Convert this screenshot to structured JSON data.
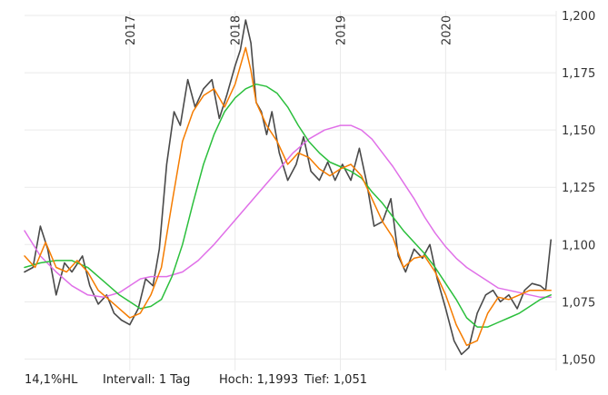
{
  "chart_data": {
    "type": "line",
    "title": "",
    "xlabel": "",
    "ylabel": "",
    "x_ticks": [
      "2017",
      "2018",
      "2019",
      "2020"
    ],
    "y_ticks": [
      "1,050",
      "1,075",
      "1,100",
      "1,125",
      "1,150",
      "1,175",
      "1,200"
    ],
    "ylim": [
      1.045,
      1.202
    ],
    "xlim": [
      2016.0,
      2021.05
    ],
    "grid": true,
    "series": [
      {
        "color": "#4a4a4a",
        "style": "price",
        "x": [
          2016.0,
          2016.08,
          2016.15,
          2016.22,
          2016.3,
          2016.38,
          2016.45,
          2016.55,
          2016.62,
          2016.7,
          2016.78,
          2016.85,
          2016.92,
          2017.0,
          2017.08,
          2017.15,
          2017.22,
          2017.28,
          2017.35,
          2017.42,
          2017.48,
          2017.55,
          2017.62,
          2017.7,
          2017.78,
          2017.85,
          2017.92,
          2018.0,
          2018.05,
          2018.1,
          2018.15,
          2018.2,
          2018.25,
          2018.3,
          2018.35,
          2018.42,
          2018.5,
          2018.58,
          2018.65,
          2018.72,
          2018.8,
          2018.88,
          2018.95,
          2019.02,
          2019.1,
          2019.18,
          2019.25,
          2019.32,
          2019.4,
          2019.48,
          2019.55,
          2019.62,
          2019.7,
          2019.78,
          2019.85,
          2019.92,
          2020.0,
          2020.08,
          2020.15,
          2020.22,
          2020.3,
          2020.38,
          2020.45,
          2020.52,
          2020.6,
          2020.68,
          2020.75,
          2020.82,
          2020.9,
          2020.95,
          2021.0
        ],
        "values": [
          1.088,
          1.09,
          1.108,
          1.098,
          1.078,
          1.092,
          1.088,
          1.095,
          1.082,
          1.074,
          1.078,
          1.07,
          1.067,
          1.065,
          1.072,
          1.085,
          1.082,
          1.098,
          1.135,
          1.158,
          1.152,
          1.172,
          1.16,
          1.168,
          1.172,
          1.155,
          1.165,
          1.178,
          1.185,
          1.198,
          1.188,
          1.162,
          1.158,
          1.148,
          1.158,
          1.14,
          1.128,
          1.135,
          1.147,
          1.132,
          1.128,
          1.136,
          1.128,
          1.135,
          1.128,
          1.142,
          1.127,
          1.108,
          1.11,
          1.12,
          1.095,
          1.088,
          1.098,
          1.094,
          1.1,
          1.085,
          1.072,
          1.058,
          1.052,
          1.055,
          1.07,
          1.078,
          1.08,
          1.075,
          1.078,
          1.072,
          1.08,
          1.083,
          1.082,
          1.08,
          1.102
        ]
      },
      {
        "color": "#f57c00",
        "style": "moving-average",
        "x": [
          2016.0,
          2016.1,
          2016.2,
          2016.3,
          2016.4,
          2016.5,
          2016.6,
          2016.7,
          2016.8,
          2016.9,
          2017.0,
          2017.1,
          2017.2,
          2017.3,
          2017.4,
          2017.5,
          2017.6,
          2017.7,
          2017.8,
          2017.9,
          2018.0,
          2018.05,
          2018.1,
          2018.15,
          2018.2,
          2018.3,
          2018.4,
          2018.5,
          2018.6,
          2018.7,
          2018.8,
          2018.9,
          2019.0,
          2019.1,
          2019.2,
          2019.3,
          2019.4,
          2019.5,
          2019.6,
          2019.7,
          2019.8,
          2019.9,
          2020.0,
          2020.1,
          2020.2,
          2020.3,
          2020.4,
          2020.5,
          2020.6,
          2020.7,
          2020.8,
          2020.9,
          2021.0
        ],
        "values": [
          1.095,
          1.09,
          1.101,
          1.09,
          1.088,
          1.093,
          1.088,
          1.08,
          1.076,
          1.072,
          1.068,
          1.07,
          1.078,
          1.09,
          1.118,
          1.145,
          1.158,
          1.165,
          1.168,
          1.16,
          1.17,
          1.178,
          1.186,
          1.176,
          1.162,
          1.152,
          1.145,
          1.135,
          1.14,
          1.138,
          1.133,
          1.13,
          1.133,
          1.135,
          1.13,
          1.12,
          1.11,
          1.103,
          1.09,
          1.094,
          1.095,
          1.088,
          1.078,
          1.065,
          1.056,
          1.058,
          1.07,
          1.077,
          1.076,
          1.078,
          1.08,
          1.08,
          1.08
        ]
      },
      {
        "color": "#2bbf3c",
        "style": "moving-average",
        "x": [
          2016.0,
          2016.15,
          2016.3,
          2016.45,
          2016.6,
          2016.75,
          2016.9,
          2017.0,
          2017.1,
          2017.2,
          2017.3,
          2017.4,
          2017.5,
          2017.6,
          2017.7,
          2017.8,
          2017.9,
          2018.0,
          2018.1,
          2018.2,
          2018.3,
          2018.4,
          2018.5,
          2018.6,
          2018.7,
          2018.8,
          2018.9,
          2019.0,
          2019.1,
          2019.2,
          2019.3,
          2019.4,
          2019.5,
          2019.6,
          2019.7,
          2019.8,
          2019.9,
          2020.0,
          2020.1,
          2020.2,
          2020.3,
          2020.4,
          2020.5,
          2020.6,
          2020.7,
          2020.8,
          2020.9,
          2021.0
        ],
        "values": [
          1.09,
          1.092,
          1.093,
          1.093,
          1.09,
          1.084,
          1.078,
          1.075,
          1.072,
          1.073,
          1.076,
          1.086,
          1.1,
          1.118,
          1.135,
          1.148,
          1.158,
          1.164,
          1.168,
          1.17,
          1.169,
          1.166,
          1.16,
          1.152,
          1.145,
          1.14,
          1.136,
          1.134,
          1.132,
          1.129,
          1.123,
          1.118,
          1.112,
          1.106,
          1.101,
          1.096,
          1.09,
          1.083,
          1.076,
          1.068,
          1.064,
          1.064,
          1.066,
          1.068,
          1.07,
          1.073,
          1.076,
          1.078
        ]
      },
      {
        "color": "#e070e8",
        "style": "moving-average",
        "x": [
          2016.0,
          2016.15,
          2016.3,
          2016.45,
          2016.6,
          2016.75,
          2016.9,
          2017.0,
          2017.1,
          2017.2,
          2017.35,
          2017.5,
          2017.65,
          2017.8,
          2017.95,
          2018.1,
          2018.25,
          2018.4,
          2018.55,
          2018.7,
          2018.85,
          2019.0,
          2019.1,
          2019.2,
          2019.3,
          2019.4,
          2019.5,
          2019.6,
          2019.7,
          2019.8,
          2019.9,
          2020.0,
          2020.1,
          2020.2,
          2020.3,
          2020.4,
          2020.5,
          2020.6,
          2020.7,
          2020.8,
          2020.9,
          2021.0
        ],
        "values": [
          1.106,
          1.095,
          1.088,
          1.082,
          1.078,
          1.077,
          1.079,
          1.082,
          1.085,
          1.086,
          1.086,
          1.088,
          1.093,
          1.1,
          1.108,
          1.116,
          1.124,
          1.132,
          1.14,
          1.146,
          1.15,
          1.152,
          1.152,
          1.15,
          1.146,
          1.14,
          1.134,
          1.127,
          1.12,
          1.112,
          1.105,
          1.099,
          1.094,
          1.09,
          1.087,
          1.084,
          1.081,
          1.08,
          1.079,
          1.078,
          1.077,
          1.077
        ]
      }
    ]
  },
  "footer": {
    "range": "14,1%HL",
    "interval": "Intervall: 1 Tag",
    "high": "Hoch: 1,1993",
    "low": "Tief: 1,051"
  }
}
